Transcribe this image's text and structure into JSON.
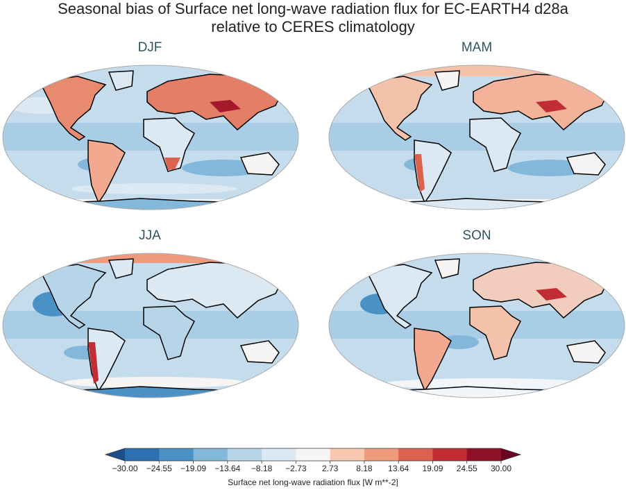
{
  "figure": {
    "title": "Seasonal bias of Surface net long-wave radiation flux for EC-EARTH4 d28a\nrelative to CERES climatology"
  },
  "panels": [
    {
      "label": "DJF"
    },
    {
      "label": "MAM"
    },
    {
      "label": "JJA"
    },
    {
      "label": "SON"
    }
  ],
  "colorbar": {
    "label": "Surface net long-wave radiation flux [W m**-2]",
    "ticks": [
      "−30.00",
      "−24.55",
      "−19.09",
      "−13.64",
      "−8.18",
      "−2.73",
      "2.73",
      "8.18",
      "13.64",
      "19.09",
      "24.55",
      "30.00"
    ],
    "colors": [
      "#1c4f8a",
      "#2c70b2",
      "#4a92c6",
      "#84b8da",
      "#b7d5e9",
      "#dce9f2",
      "#f7f5f3",
      "#f8c8b0",
      "#ef9a7d",
      "#dc6250",
      "#c12d35",
      "#8e1127",
      "#6a0420"
    ]
  },
  "map_style": {
    "ocean_base": "#b7d5e9",
    "land_outline": "#000000",
    "frame": "#aaaaaa"
  }
}
